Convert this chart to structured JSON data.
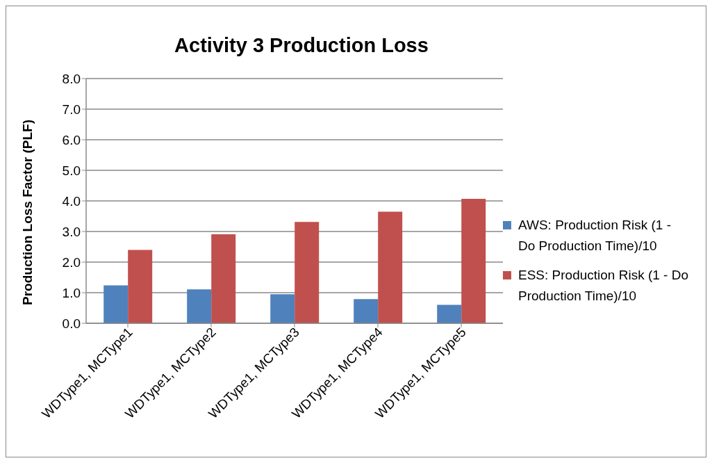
{
  "chart_data": {
    "type": "bar",
    "title": "Activity 3 Production Loss",
    "ylabel": "Production Loss Factor (PLF)",
    "categories": [
      "WDType1, MCType1",
      "WDType1, MCType2",
      "WDType1, MCType3",
      "WDType1, MCType4",
      "WDType1, MCType5"
    ],
    "series": [
      {
        "name": "AWS: Production Risk (1 - Do Production Time)/10",
        "color": "#4f81bd",
        "values": [
          1.24,
          1.11,
          0.95,
          0.79,
          0.6
        ]
      },
      {
        "name": "ESS: Production Risk (1 - Do Production Time)/10",
        "color": "#c0504d",
        "values": [
          2.4,
          2.91,
          3.31,
          3.65,
          4.07
        ]
      }
    ],
    "ylim": [
      0,
      8
    ],
    "yticks": [
      {
        "value": 0,
        "label": "0.0"
      },
      {
        "value": 1,
        "label": "1.0"
      },
      {
        "value": 2,
        "label": "2.0"
      },
      {
        "value": 3,
        "label": "3.0"
      },
      {
        "value": 4,
        "label": "4.0"
      },
      {
        "value": 5,
        "label": "5.0"
      },
      {
        "value": 6,
        "label": "6.0"
      },
      {
        "value": 7,
        "label": "7.0"
      },
      {
        "value": 8,
        "label": "8.0"
      }
    ],
    "grid": "y",
    "legend": "right"
  }
}
